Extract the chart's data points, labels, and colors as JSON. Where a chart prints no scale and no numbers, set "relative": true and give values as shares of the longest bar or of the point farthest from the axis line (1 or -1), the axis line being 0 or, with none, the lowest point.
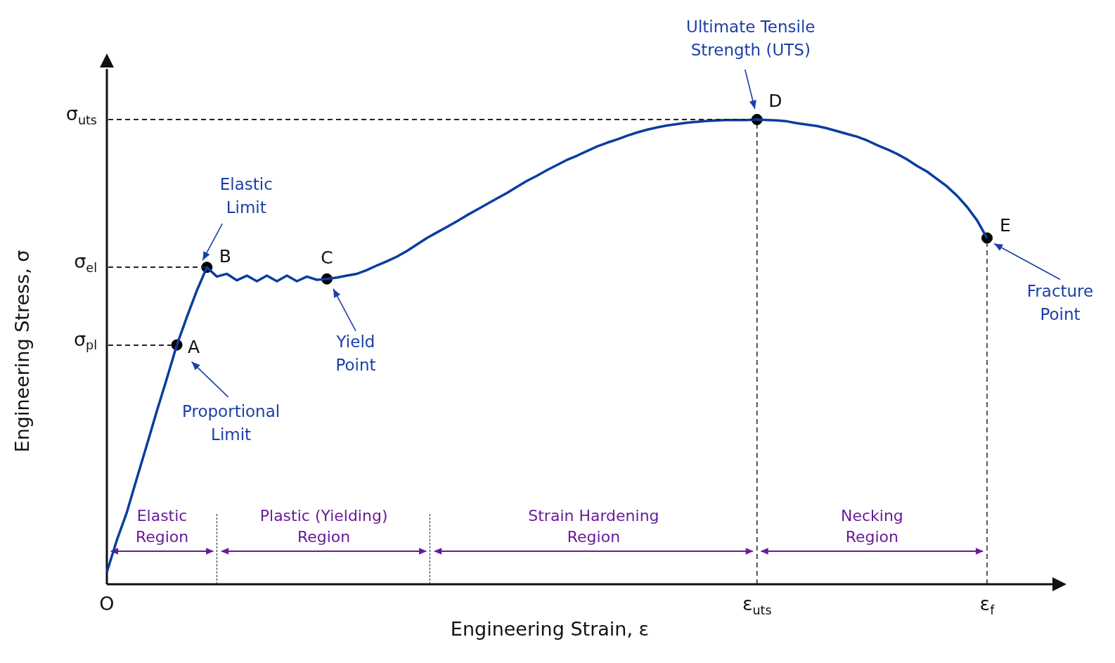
{
  "chart_data": {
    "type": "line",
    "relative": true,
    "xlabel": "Engineering Strain, ε",
    "ylabel": "Engineering Stress, σ",
    "categories": [
      "O",
      null,
      null,
      null,
      null,
      null,
      null,
      null,
      null,
      null,
      null,
      null,
      null,
      null,
      null,
      null,
      null,
      null,
      null,
      null,
      null,
      null,
      null,
      null,
      null,
      null,
      null,
      null,
      null,
      null,
      null,
      null,
      null,
      null,
      null,
      null,
      null,
      null,
      null,
      null,
      null,
      null,
      null,
      null,
      null,
      null,
      null,
      null,
      null,
      null,
      null,
      null,
      null,
      null,
      null,
      null,
      null,
      null,
      null,
      null,
      null,
      null,
      null,
      null,
      null,
      "ε$_{uts}$",
      null,
      null,
      null,
      null,
      null,
      null,
      null,
      null,
      null,
      null,
      null,
      null,
      null,
      null,
      null,
      null,
      null,
      null,
      null,
      null,
      null,
      null,
      "ε$_{f}$"
    ],
    "series": [
      {
        "color": "#0a3d9e",
        "marker": "none",
        "values": [
          0.026,
          0.095,
          0.155,
          0.228,
          0.3,
          0.373,
          0.443,
          0.515,
          0.575,
          0.632,
          0.682,
          0.662,
          0.668,
          0.654,
          0.664,
          0.652,
          0.664,
          0.652,
          0.664,
          0.652,
          0.662,
          0.655,
          0.657,
          0.66,
          0.664,
          0.668,
          0.676,
          0.686,
          0.695,
          0.705,
          0.717,
          0.731,
          0.745,
          0.757,
          0.769,
          0.781,
          0.794,
          0.806,
          0.818,
          0.83,
          0.842,
          0.855,
          0.868,
          0.879,
          0.891,
          0.902,
          0.913,
          0.922,
          0.932,
          0.942,
          0.95,
          0.957,
          0.965,
          0.972,
          0.978,
          0.983,
          0.987,
          0.99,
          0.993,
          0.995,
          0.997,
          0.998,
          0.999,
          0.999,
          0.999,
          1,
          0.999,
          0.998,
          0.996,
          0.992,
          0.989,
          0.986,
          0.981,
          0.975,
          0.969,
          0.963,
          0.955,
          0.945,
          0.936,
          0.926,
          0.914,
          0.9,
          0.888,
          0.872,
          0.856,
          0.836,
          0.812,
          0.783,
          0.745
        ]
      },
      {
        "type": "scatter",
        "color": "#000000",
        "marker": "circle",
        "values": [
          null,
          null,
          null,
          null,
          null,
          null,
          null,
          0.515,
          null,
          null,
          0.682,
          null,
          null,
          null,
          null,
          null,
          null,
          null,
          null,
          null,
          null,
          null,
          0.657,
          null,
          null,
          null,
          null,
          null,
          null,
          null,
          null,
          null,
          null,
          null,
          null,
          null,
          null,
          null,
          null,
          null,
          null,
          null,
          null,
          null,
          null,
          null,
          null,
          null,
          null,
          null,
          null,
          null,
          null,
          null,
          null,
          null,
          null,
          null,
          null,
          null,
          null,
          null,
          null,
          null,
          null,
          1,
          null,
          null,
          null,
          null,
          null,
          null,
          null,
          null,
          null,
          null,
          null,
          null,
          null,
          null,
          null,
          null,
          null,
          null,
          null,
          null,
          null,
          null,
          0.745
        ]
      }
    ],
    "ref_lines": [
      {
        "axis": "y",
        "value": 1,
        "label": "σ$_{uts}$",
        "line_style": "dashed"
      },
      {
        "axis": "y",
        "value": 0.682,
        "label": "σ$_{el}$",
        "line_style": "dashed"
      },
      {
        "axis": "y",
        "value": 0.515,
        "label": "σ$_{pl}$",
        "line_style": "dashed"
      }
    ],
    "annotations": [
      "A",
      "B",
      "C",
      "D",
      "E",
      "Proportional\nLimit",
      "Elastic\nLimit",
      "Yield\nPoint",
      "Ultimate Tensile\nStrength (UTS)",
      "Fracture\nPoint",
      "Elastic\nRegion",
      "Plastic (Yielding)\nRegion",
      "Strain Hardening\nRegion",
      "Necking\nRegion"
    ],
    "legend": false
  }
}
